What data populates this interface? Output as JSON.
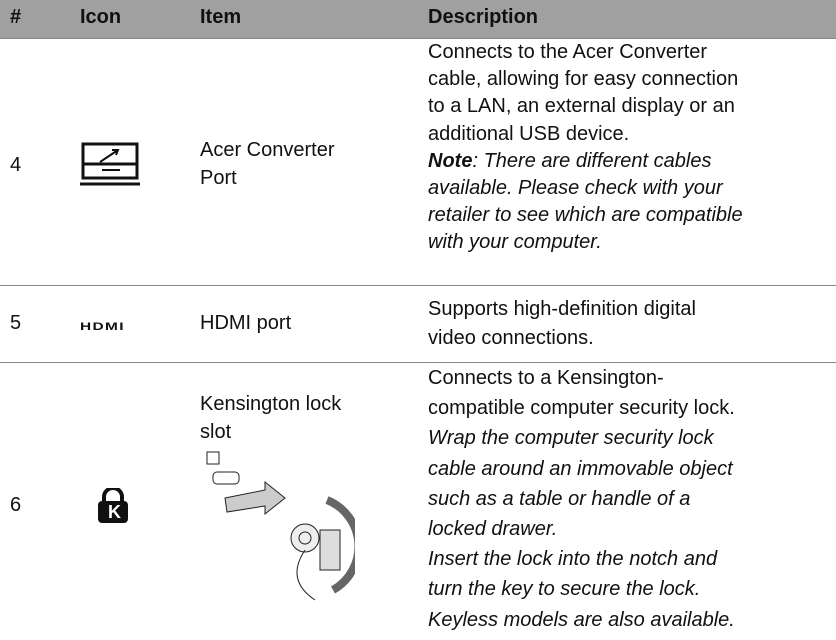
{
  "table": {
    "header": [
      "#",
      "Icon",
      "Item",
      "Description"
    ],
    "rows": [
      {
        "number": "4",
        "item": [
          "Acer Converter",
          "Port"
        ],
        "description": [
          "Connects to the Acer Converter",
          "cable, allowing for easy connection",
          "to a LAN, an external display or an",
          "additional USB device."
        ],
        "note_label": "Note",
        "note": [
          ": There are different cables",
          "available. Please check with your",
          "retailer to see which are compatible",
          "with your computer."
        ]
      },
      {
        "number": "5",
        "icon_label": "HDMI",
        "item": [
          "HDMI port"
        ],
        "description": [
          "Supports high-definition digital",
          "video connections."
        ]
      },
      {
        "number": "6",
        "icon_label": "K",
        "item": [
          "Kensington lock",
          "slot"
        ],
        "description": [
          "Connects to a Kensington-",
          "compatible computer security lock."
        ],
        "note": [
          "Wrap the computer security lock",
          "cable around an immovable object",
          "such as a table or handle of a",
          "locked drawer.",
          "Insert the lock into the notch and",
          "turn the key to secure the lock.",
          "Keyless models are also available."
        ]
      }
    ]
  }
}
